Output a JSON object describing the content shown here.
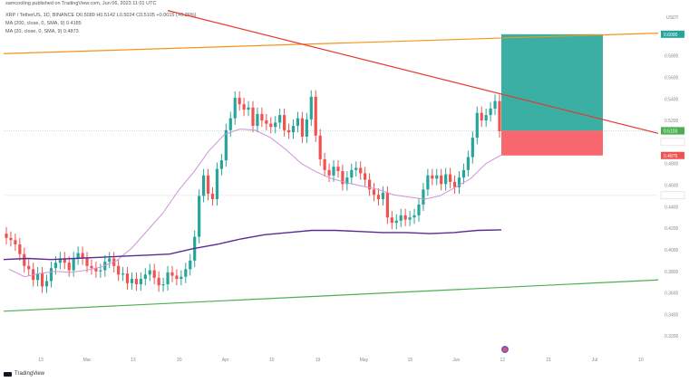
{
  "header": {
    "line1": "samcooling published on TradingView.com, Jun 06, 2023 11:01 UTC",
    "line2": "XRP / TetherUS, 1D, BINANCE  O0.5089  H0.5142  L0.5024  C0.5105  +0.0015 (+0.29%)",
    "line3": "MA (200, close, 0, SMA, 9)  0.4185",
    "line4": "MA (20, close, 0, SMA, 9)  0.4873"
  },
  "footer": {
    "brand": "TradingView"
  },
  "colors": {
    "up": "#26a69a",
    "down": "#ef5350",
    "ma20": "#ce93d8",
    "ma200": "#5b2c91",
    "resistance": "#f7931a",
    "support": "#4caf50",
    "downtrend": "#e53935",
    "target_zone": "#26a69a",
    "stop_zone": "#f6575d"
  },
  "chart_data": {
    "type": "candlestick",
    "symbol": "XRP / TetherUS, 1D, BINANCE",
    "y_unit": "USDT",
    "ylim": [
      0.3,
      0.62
    ],
    "y_ticks": [
      0.32,
      0.34,
      0.36,
      0.38,
      0.4,
      0.42,
      0.44,
      0.46,
      0.48,
      0.52,
      0.54,
      0.56,
      0.58
    ],
    "x_ticks": [
      "13",
      "Mar",
      "13",
      "20",
      "Apr",
      "10",
      "19",
      "May",
      "15",
      "Jun",
      "12",
      "21",
      "Jul",
      "10"
    ],
    "price_tags": [
      {
        "label": "0.6000",
        "color": "#26a69a"
      },
      {
        "label": "0.5105",
        "color": "#26a69a"
      },
      {
        "label": "0.5103",
        "color": "#4caf50"
      },
      {
        "label": "0.5000",
        "color": "#ffffff"
      },
      {
        "label": "0.4875",
        "color": "#ef5350"
      },
      {
        "label": "0.4505",
        "color": "#ffffff"
      }
    ],
    "candles_close": [
      0.411,
      0.409,
      0.405,
      0.396,
      0.385,
      0.382,
      0.372,
      0.378,
      0.366,
      0.371,
      0.383,
      0.388,
      0.392,
      0.388,
      0.381,
      0.392,
      0.397,
      0.392,
      0.385,
      0.383,
      0.38,
      0.381,
      0.389,
      0.392,
      0.385,
      0.377,
      0.378,
      0.369,
      0.373,
      0.368,
      0.373,
      0.377,
      0.381,
      0.374,
      0.367,
      0.368,
      0.379,
      0.376,
      0.373,
      0.375,
      0.382,
      0.39,
      0.412,
      0.45,
      0.469,
      0.452,
      0.447,
      0.475,
      0.483,
      0.511,
      0.522,
      0.541,
      0.535,
      0.53,
      0.532,
      0.515,
      0.526,
      0.52,
      0.517,
      0.514,
      0.518,
      0.525,
      0.511,
      0.509,
      0.515,
      0.522,
      0.505,
      0.521,
      0.542,
      0.506,
      0.484,
      0.474,
      0.469,
      0.477,
      0.473,
      0.461,
      0.467,
      0.474,
      0.476,
      0.471,
      0.465,
      0.456,
      0.451,
      0.447,
      0.453,
      0.43,
      0.425,
      0.427,
      0.432,
      0.428,
      0.43,
      0.432,
      0.442,
      0.456,
      0.469,
      0.466,
      0.469,
      0.461,
      0.47,
      0.463,
      0.458,
      0.467,
      0.474,
      0.486,
      0.504,
      0.527,
      0.52,
      0.525,
      0.531,
      0.538,
      0.51
    ],
    "ma20": [
      0.382,
      0.375,
      0.378,
      0.38,
      0.379,
      0.381,
      0.384,
      0.39,
      0.402,
      0.418,
      0.434,
      0.455,
      0.472,
      0.492,
      0.507,
      0.512,
      0.511,
      0.504,
      0.493,
      0.48,
      0.472,
      0.466,
      0.462,
      0.459,
      0.456,
      0.451,
      0.449,
      0.447,
      0.45,
      0.458,
      0.466,
      0.48,
      0.488
    ],
    "ma200": [
      0.391,
      0.392,
      0.391,
      0.392,
      0.393,
      0.394,
      0.395,
      0.396,
      0.401,
      0.405,
      0.41,
      0.414,
      0.416,
      0.418,
      0.418,
      0.417,
      0.416,
      0.416,
      0.415,
      0.416,
      0.418,
      0.4185
    ],
    "resistance_line": [
      0.582,
      0.601
    ],
    "support_line": [
      0.343,
      0.372
    ],
    "downtrend_line": [
      0.622,
      0.508
    ],
    "position": {
      "entry": 0.5105,
      "target": 0.6,
      "stop": 0.4875
    }
  }
}
